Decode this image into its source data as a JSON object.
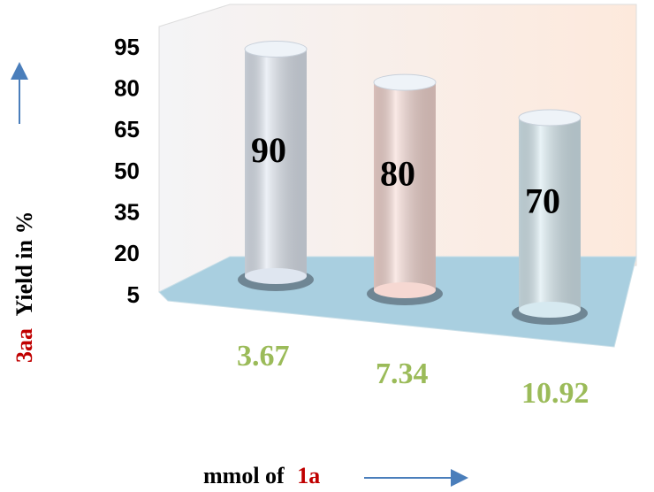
{
  "chart_data": {
    "type": "bar",
    "categories": [
      "3.67",
      "7.34",
      "10.92"
    ],
    "values": [
      90,
      80,
      70
    ],
    "colors": [
      "#dfe6f0",
      "#f6d8d2",
      "#d6e9f0"
    ],
    "ylim": [
      5,
      95
    ],
    "yticks": [
      5,
      20,
      35,
      50,
      65,
      80,
      95
    ],
    "ylabel": [
      "3aa",
      "Yield in %"
    ],
    "xlabel": [
      "mmol of",
      "1a"
    ]
  }
}
